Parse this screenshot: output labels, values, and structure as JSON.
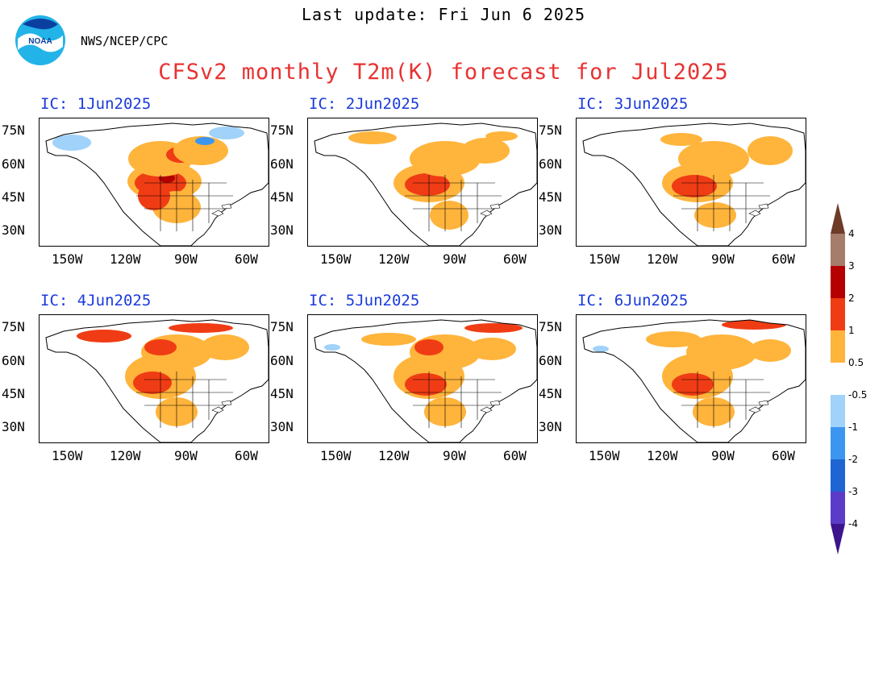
{
  "header": {
    "last_update": "Last update: Fri Jun 6 2025",
    "agency": "NWS/NCEP/CPC",
    "title": "CFSv2 monthly T2m(K) forecast for Jul2025"
  },
  "lat_labels": [
    "75N",
    "60N",
    "45N",
    "30N"
  ],
  "lon_labels": [
    "150W",
    "120W",
    "90W",
    "60W"
  ],
  "panels": [
    {
      "ic": "IC: 1Jun2025",
      "pattern": 0
    },
    {
      "ic": "IC: 2Jun2025",
      "pattern": 1
    },
    {
      "ic": "IC: 3Jun2025",
      "pattern": 2
    },
    {
      "ic": "IC: 4Jun2025",
      "pattern": 3
    },
    {
      "ic": "IC: 5Jun2025",
      "pattern": 4
    },
    {
      "ic": "IC: 6Jun2025",
      "pattern": 5
    }
  ],
  "colorbar": {
    "labels": [
      "4",
      "3",
      "2",
      "1",
      "0.5",
      "-0.5",
      "-1",
      "-2",
      "-3",
      "-4"
    ],
    "colors": [
      "#6e3b28",
      "#a67c6a",
      "#b40000",
      "#f03c14",
      "#ffb43c",
      "#ffffff",
      "#a0d2fa",
      "#3c96f0",
      "#1e64d2",
      "#5a3cc8",
      "#3c148c"
    ]
  },
  "palette": {
    "warm1": "#ffb43c",
    "warm2": "#f03c14",
    "warm3": "#b40000",
    "cool1": "#a0d2fa",
    "cool2": "#3c96f0"
  }
}
